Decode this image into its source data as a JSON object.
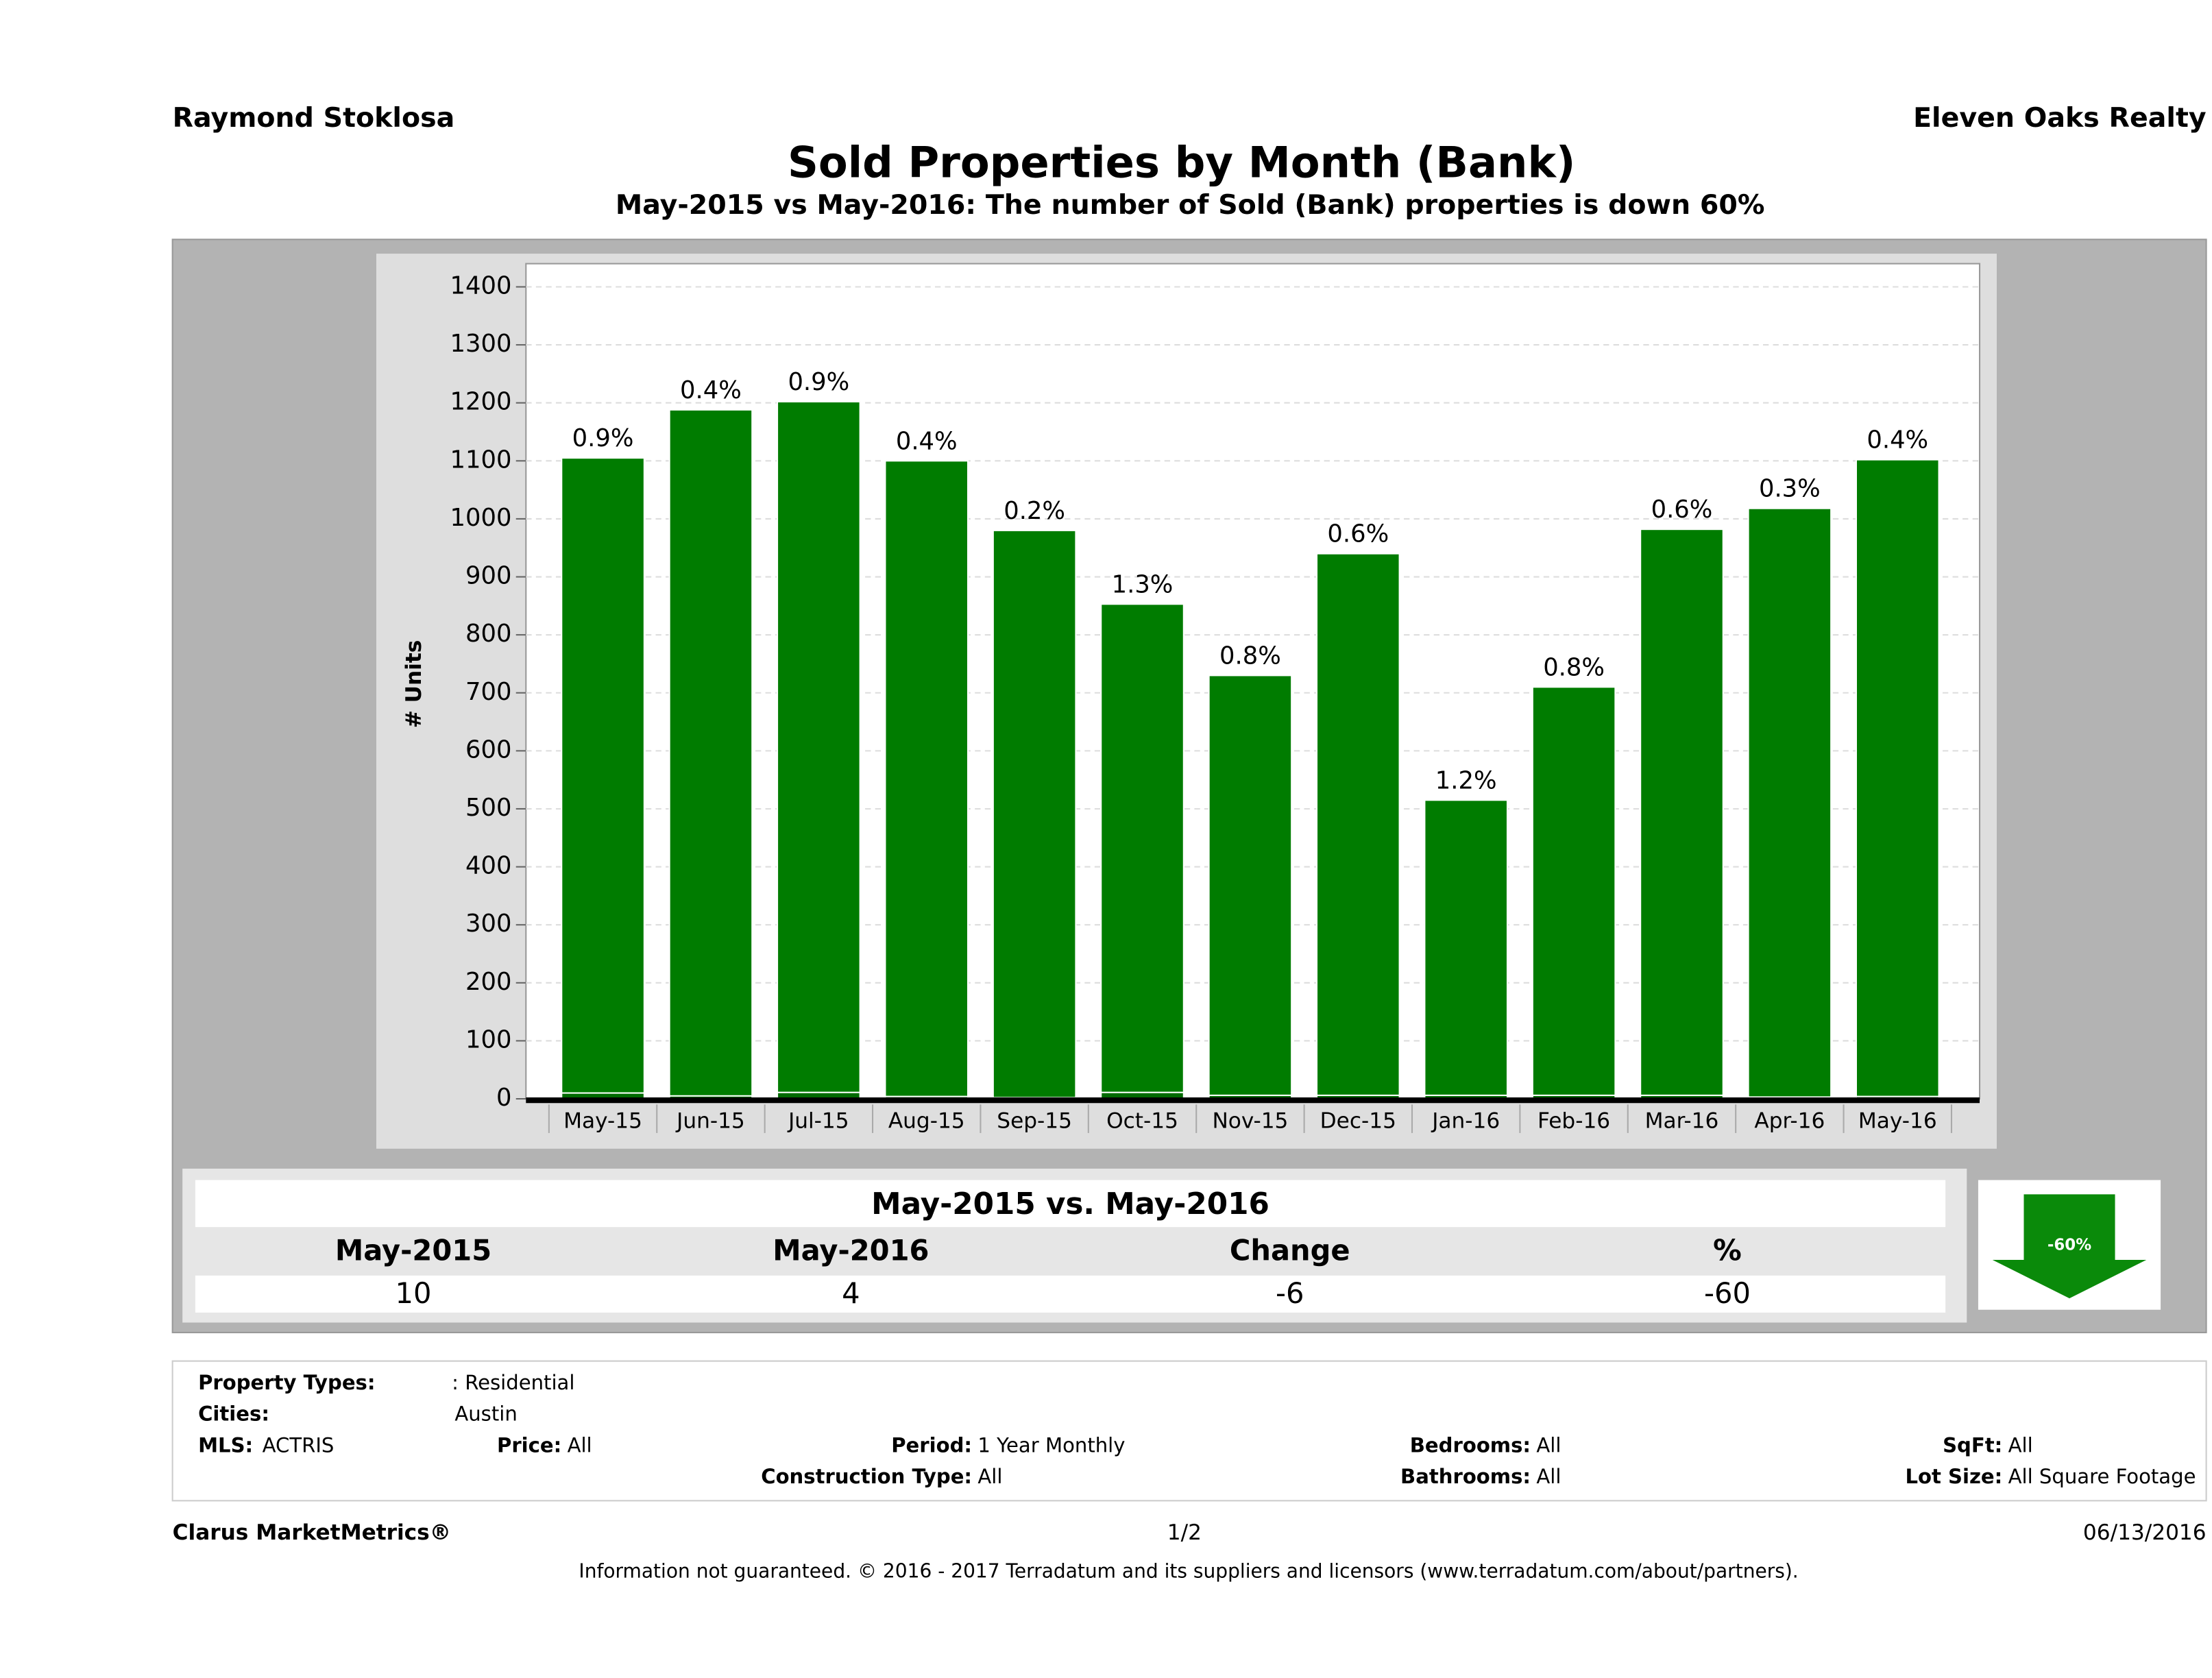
{
  "header": {
    "left": "Raymond Stoklosa",
    "right": "Eleven Oaks Realty"
  },
  "chart_data": {
    "type": "bar",
    "title": "Sold Properties by Month (Bank)",
    "subtitle": "May-2015 vs May-2016: The number of Sold (Bank)  properties is down 60%",
    "y_label": "# Units",
    "categories": [
      "May-15",
      "Jun-15",
      "Jul-15",
      "Aug-15",
      "Sep-15",
      "Oct-15",
      "Nov-15",
      "Dec-15",
      "Jan-16",
      "Feb-16",
      "Mar-16",
      "Apr-16",
      "May-16"
    ],
    "series": [
      {
        "color": "#007c00",
        "values": [
          1105,
          1188,
          1202,
          1100,
          980,
          853,
          730,
          940,
          515,
          710,
          982,
          1018,
          1102
        ]
      },
      {
        "color": "#006a00",
        "values": [
          10,
          5,
          11,
          4,
          2,
          11,
          6,
          6,
          6,
          6,
          6,
          3,
          4
        ],
        "bar_labels": [
          "0.9%",
          "0.4%",
          "0.9%",
          "0.4%",
          "0.2%",
          "1.3%",
          "0.8%",
          "0.6%",
          "1.2%",
          "0.8%",
          "0.6%",
          "0.3%",
          "0.4%"
        ]
      }
    ],
    "ylim": [
      0,
      1440
    ],
    "yticks": [
      0,
      100,
      200,
      300,
      400,
      500,
      600,
      700,
      800,
      900,
      1000,
      1100,
      1200,
      1300,
      1400
    ],
    "grid": true
  },
  "comparison": {
    "title": "May-2015 vs. May-2016",
    "headers": [
      "May-2015",
      "May-2016",
      "Change",
      "%"
    ],
    "values": [
      10,
      4,
      -6,
      -60
    ],
    "badge": "-60%"
  },
  "criteria": [
    {
      "label": "Property Types:",
      "value": ": Residential"
    },
    {
      "label": "Cities:",
      "value": "Austin"
    },
    {
      "label": "MLS:",
      "value": "ACTRIS"
    },
    {
      "label": "Price:",
      "value": "All"
    },
    {
      "label": "Period:",
      "value": "1 Year Monthly"
    },
    {
      "label": "Bedrooms:",
      "value": "All"
    },
    {
      "label": "SqFt:",
      "value": "All"
    },
    {
      "label": "Construction Type:",
      "value": "All"
    },
    {
      "label": "Bathrooms:",
      "value": "All"
    },
    {
      "label": "Lot Size:",
      "value": "All Square Footage"
    }
  ],
  "footer": {
    "brand": "Clarus MarketMetrics®",
    "page": "1/2",
    "date": "06/13/2016",
    "disclaimer": "Information not guaranteed. © 2016 - 2017 Terradatum and its suppliers and licensors (www.terradatum.com/about/partners)."
  }
}
